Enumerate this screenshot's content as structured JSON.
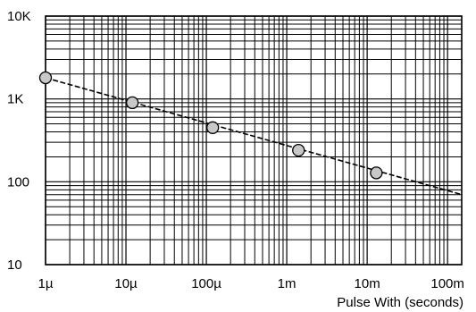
{
  "chart_data": {
    "type": "line",
    "title": "",
    "xlabel": "Pulse With (seconds)",
    "ylabel": "",
    "xscale": "log",
    "yscale": "log",
    "xlim": [
      1e-06,
      0.15
    ],
    "ylim": [
      10,
      10000
    ],
    "grid": true,
    "x_ticks": [
      {
        "value": 1e-06,
        "label": "1µ"
      },
      {
        "value": 1e-05,
        "label": "10µ"
      },
      {
        "value": 0.0001,
        "label": "100µ"
      },
      {
        "value": 0.001,
        "label": "1m"
      },
      {
        "value": 0.01,
        "label": "10m"
      },
      {
        "value": 0.1,
        "label": "100m"
      }
    ],
    "y_ticks": [
      {
        "value": 10,
        "label": "10"
      },
      {
        "value": 100,
        "label": "100"
      },
      {
        "value": 1000,
        "label": "1K"
      },
      {
        "value": 10000,
        "label": "10K"
      }
    ],
    "series": [
      {
        "line_start": [
          1e-06,
          1800
        ],
        "line_end": [
          0.15,
          70
        ],
        "points": [
          {
            "x": 1e-06,
            "y": 1800
          },
          {
            "x": 1.2e-05,
            "y": 900
          },
          {
            "x": 0.00012,
            "y": 450
          },
          {
            "x": 0.0014,
            "y": 240
          },
          {
            "x": 0.013,
            "y": 128
          }
        ]
      }
    ]
  }
}
